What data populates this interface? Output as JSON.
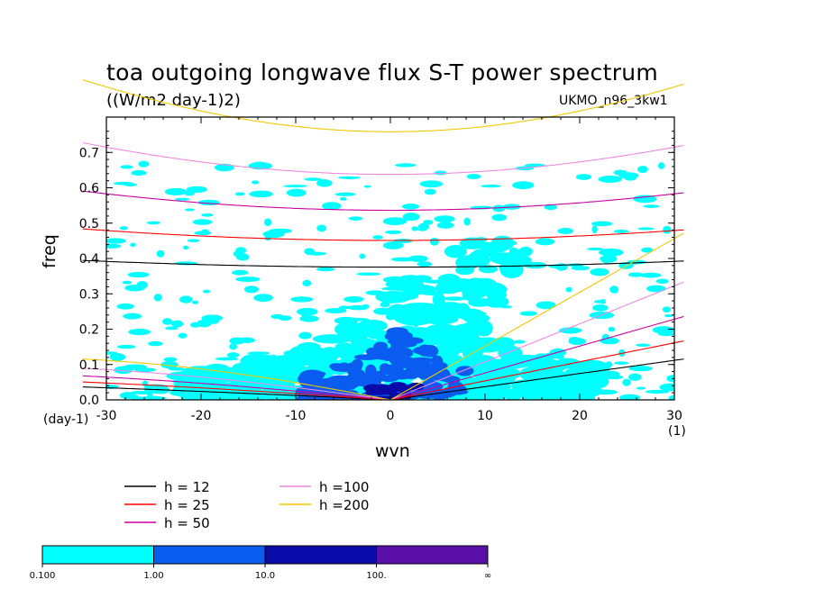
{
  "title": "toa outgoing longwave flux S-T power spectrum",
  "subtitle": "((W/m2 day-1)2)",
  "run_label": "UKMO_n96_3kw1",
  "chart_data": {
    "type": "heatmap",
    "title": "toa outgoing longwave flux S-T power spectrum",
    "units": "((W/m2 day-1)2)",
    "xlabel": "wvn",
    "ylabel": "freq",
    "x_unit_label": "(1)",
    "y_unit_label": "(day-1)",
    "xlim": [
      -30,
      30
    ],
    "ylim": [
      0,
      0.8
    ],
    "xticks": [
      -30,
      -20,
      -10,
      0,
      10,
      20,
      30
    ],
    "yticks": [
      0.0,
      0.1,
      0.2,
      0.3,
      0.4,
      0.5,
      0.6,
      0.7
    ],
    "xtick_labels": [
      "-30",
      "-20",
      "-10",
      "0",
      "10",
      "20",
      "30"
    ],
    "ytick_labels": [
      "0.0",
      "0.1",
      "0.2",
      "0.3",
      "0.4",
      "0.5",
      "0.6",
      "0.7"
    ],
    "colorbar": {
      "levels": [
        "0.100",
        "1.00",
        "10.0",
        "100.",
        "∞"
      ],
      "colors": [
        "#00ffff",
        "#0a5cf0",
        "#0a0aa8",
        "#5a10a8"
      ]
    },
    "dispersion_curves": [
      {
        "label": "h = 12",
        "h": 12,
        "color": "#000000"
      },
      {
        "label": "h = 25",
        "h": 25,
        "color": "#ff0000"
      },
      {
        "label": "h = 50",
        "h": 50,
        "color": "#cc00a0"
      },
      {
        "label": "h =100",
        "h": 100,
        "color": "#ee88e0"
      },
      {
        "label": "h =200",
        "h": 200,
        "color": "#f0c800"
      }
    ],
    "power_regions": [
      {
        "level": "0.1-1",
        "x": [
          -30,
          30
        ],
        "y": [
          0.0,
          0.66
        ]
      },
      {
        "level": "1-10",
        "x": [
          -10,
          9
        ],
        "y": [
          0.0,
          0.22
        ]
      },
      {
        "level": "10-100",
        "x": [
          -2,
          3
        ],
        "y": [
          0.0,
          0.05
        ]
      }
    ]
  }
}
